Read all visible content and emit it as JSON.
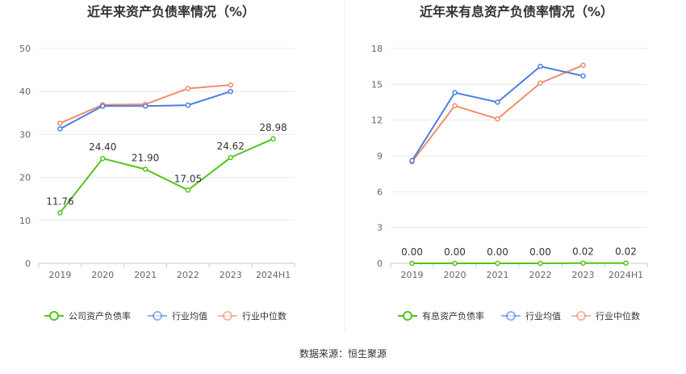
{
  "source": "数据来源：恒生聚源",
  "colors": {
    "company": "#52c41a",
    "avg": "#4c7ee3",
    "median": "#f08c6c",
    "grid": "#e8e8e8",
    "axis": "#cccccc"
  },
  "chart_data": [
    {
      "type": "line",
      "title": "近年来资产负债率情况（%）",
      "categories": [
        "2019",
        "2020",
        "2021",
        "2022",
        "2023",
        "2024H1"
      ],
      "ylim": [
        0,
        50
      ],
      "yticks": [
        0,
        10,
        20,
        30,
        40,
        50
      ],
      "legend_position": "bottom",
      "series": [
        {
          "name": "公司资产负债率",
          "key": "company",
          "values": [
            11.76,
            24.4,
            21.9,
            17.05,
            24.62,
            28.98
          ],
          "labels": [
            "11.76",
            "24.40",
            "21.90",
            "17.05",
            "24.62",
            "28.98"
          ]
        },
        {
          "name": "行业均值",
          "key": "avg",
          "values": [
            31.3,
            36.6,
            36.6,
            36.8,
            40.0,
            null
          ]
        },
        {
          "name": "行业中位数",
          "key": "median",
          "values": [
            32.6,
            36.9,
            37.0,
            40.7,
            41.5,
            null
          ]
        }
      ]
    },
    {
      "type": "line",
      "title": "近年来有息资产负债率情况（%）",
      "categories": [
        "2019",
        "2020",
        "2021",
        "2022",
        "2023",
        "2024H1"
      ],
      "ylim": [
        0,
        18
      ],
      "yticks": [
        0,
        3,
        6,
        9,
        12,
        15,
        18
      ],
      "legend_position": "bottom",
      "series": [
        {
          "name": "有息资产负债率",
          "key": "company",
          "values": [
            0.0,
            0.0,
            0.0,
            0.0,
            0.02,
            0.02
          ],
          "labels": [
            "0.00",
            "0.00",
            "0.00",
            "0.00",
            "0.02",
            "0.02"
          ]
        },
        {
          "name": "行业均值",
          "key": "avg",
          "values": [
            8.6,
            14.3,
            13.5,
            16.5,
            15.7,
            null
          ]
        },
        {
          "name": "行业中位数",
          "key": "median",
          "values": [
            8.5,
            13.2,
            12.1,
            15.1,
            16.6,
            null
          ]
        }
      ]
    }
  ]
}
